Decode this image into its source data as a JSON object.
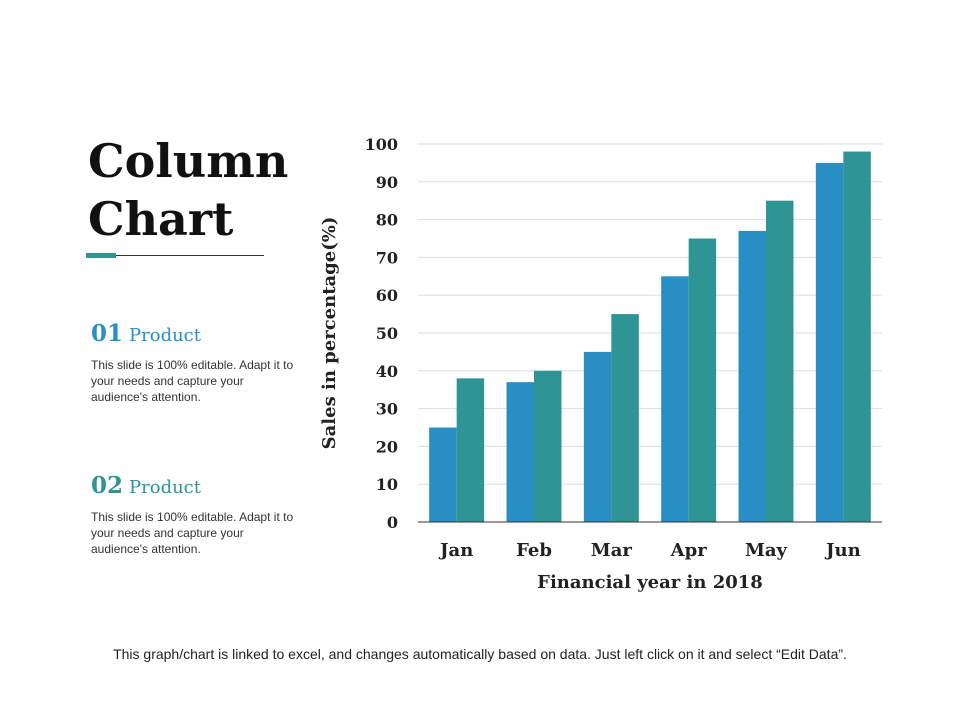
{
  "slide": {
    "title": "Column Chart",
    "products": [
      {
        "number": "01",
        "label": "Product",
        "text": "This slide is 100% editable. Adapt it to your needs and capture your audience's attention."
      },
      {
        "number": "02",
        "label": "Product",
        "text": "This slide is 100% editable. Adapt it to your needs and capture your audience's attention."
      }
    ],
    "footer": "This graph/chart is linked to excel, and changes automatically based on data. Just left click on it and select “Edit Data”."
  },
  "colors": {
    "series1": "#2a8fc4",
    "series2": "#2e9494",
    "accent": "#2e9494"
  },
  "chart_data": {
    "type": "bar",
    "categories": [
      "Jan",
      "Feb",
      "Mar",
      "Apr",
      "May",
      "Jun"
    ],
    "series": [
      {
        "values": [
          25,
          37,
          45,
          65,
          77,
          95
        ]
      },
      {
        "values": [
          38,
          40,
          55,
          75,
          85,
          98
        ]
      }
    ],
    "xlabel": "Financial year in 2018",
    "ylabel": "Sales in percentage(%)",
    "ylim": [
      0,
      100
    ],
    "yticks": [
      0,
      10,
      20,
      30,
      40,
      50,
      60,
      70,
      80,
      90,
      100
    ],
    "grid": true,
    "legend": "none"
  }
}
